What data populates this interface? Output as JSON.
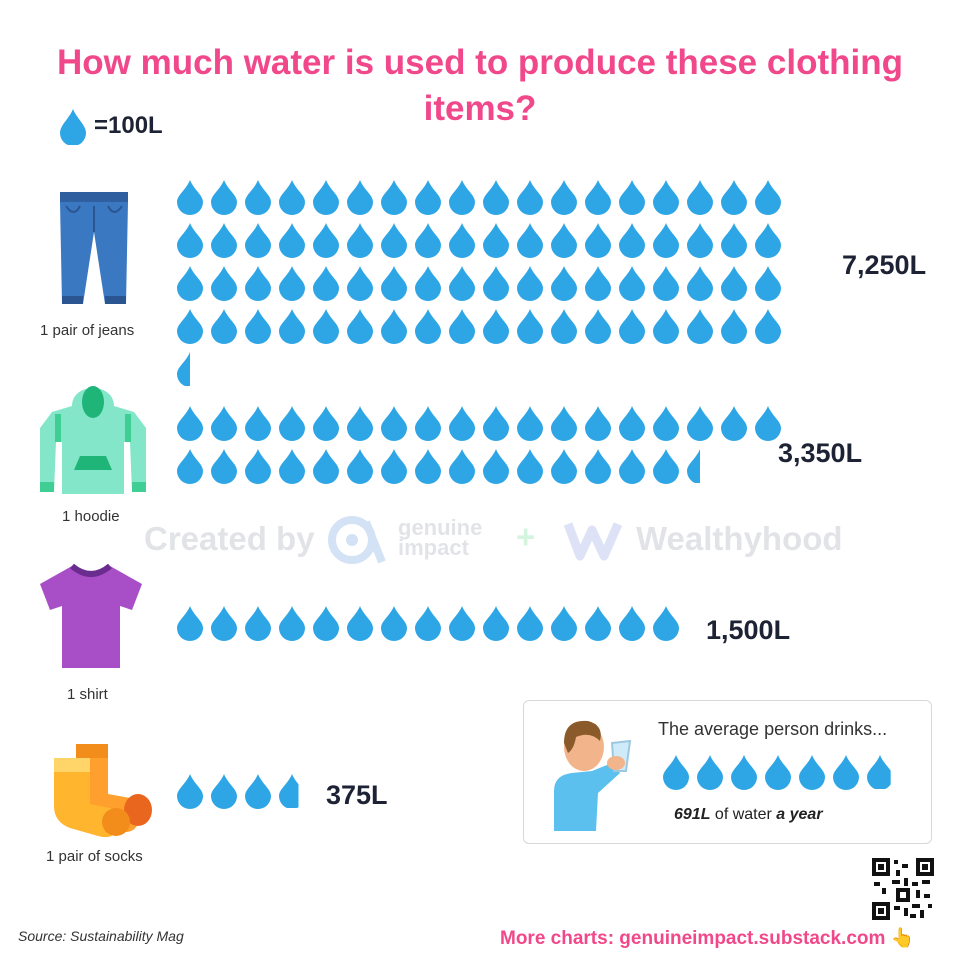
{
  "title": "How much water is used to produce these clothing items?",
  "legend": {
    "label": "=100L",
    "unit_value": 100,
    "icon": "water-drop-icon",
    "color": "#2ea6e6"
  },
  "chart_data": {
    "type": "pictogram",
    "title": "How much water is used to produce these clothing items?",
    "unit": "L",
    "drop_value": 100,
    "categories": [
      "1 pair of jeans",
      "1 hoodie",
      "1 shirt",
      "1 pair of socks"
    ],
    "values": [
      7250,
      3350,
      1500,
      375
    ],
    "value_labels": [
      "7,250L",
      "3,350L",
      "1,500L",
      "375L"
    ],
    "icons": [
      "jeans-icon",
      "hoodie-icon",
      "shirt-icon",
      "socks-icon"
    ]
  },
  "watermark": {
    "created_by": "Created by",
    "brand1_line1": "genuine",
    "brand1_line2": "impact",
    "plus": "+",
    "brand2": "Wealthyhood"
  },
  "fact_box": {
    "intro": "The average person drinks...",
    "value": 691,
    "amount": "691L",
    "mid_text": " of water ",
    "period": "a year",
    "icon": "person-drinking-icon"
  },
  "footer": {
    "source": "Source: Sustainability Mag",
    "more": "More charts: genuineimpact.substack.com 👆"
  },
  "colors": {
    "title": "#f0488a",
    "drop": "#2ea6e6",
    "value_text": "#1e2235"
  }
}
